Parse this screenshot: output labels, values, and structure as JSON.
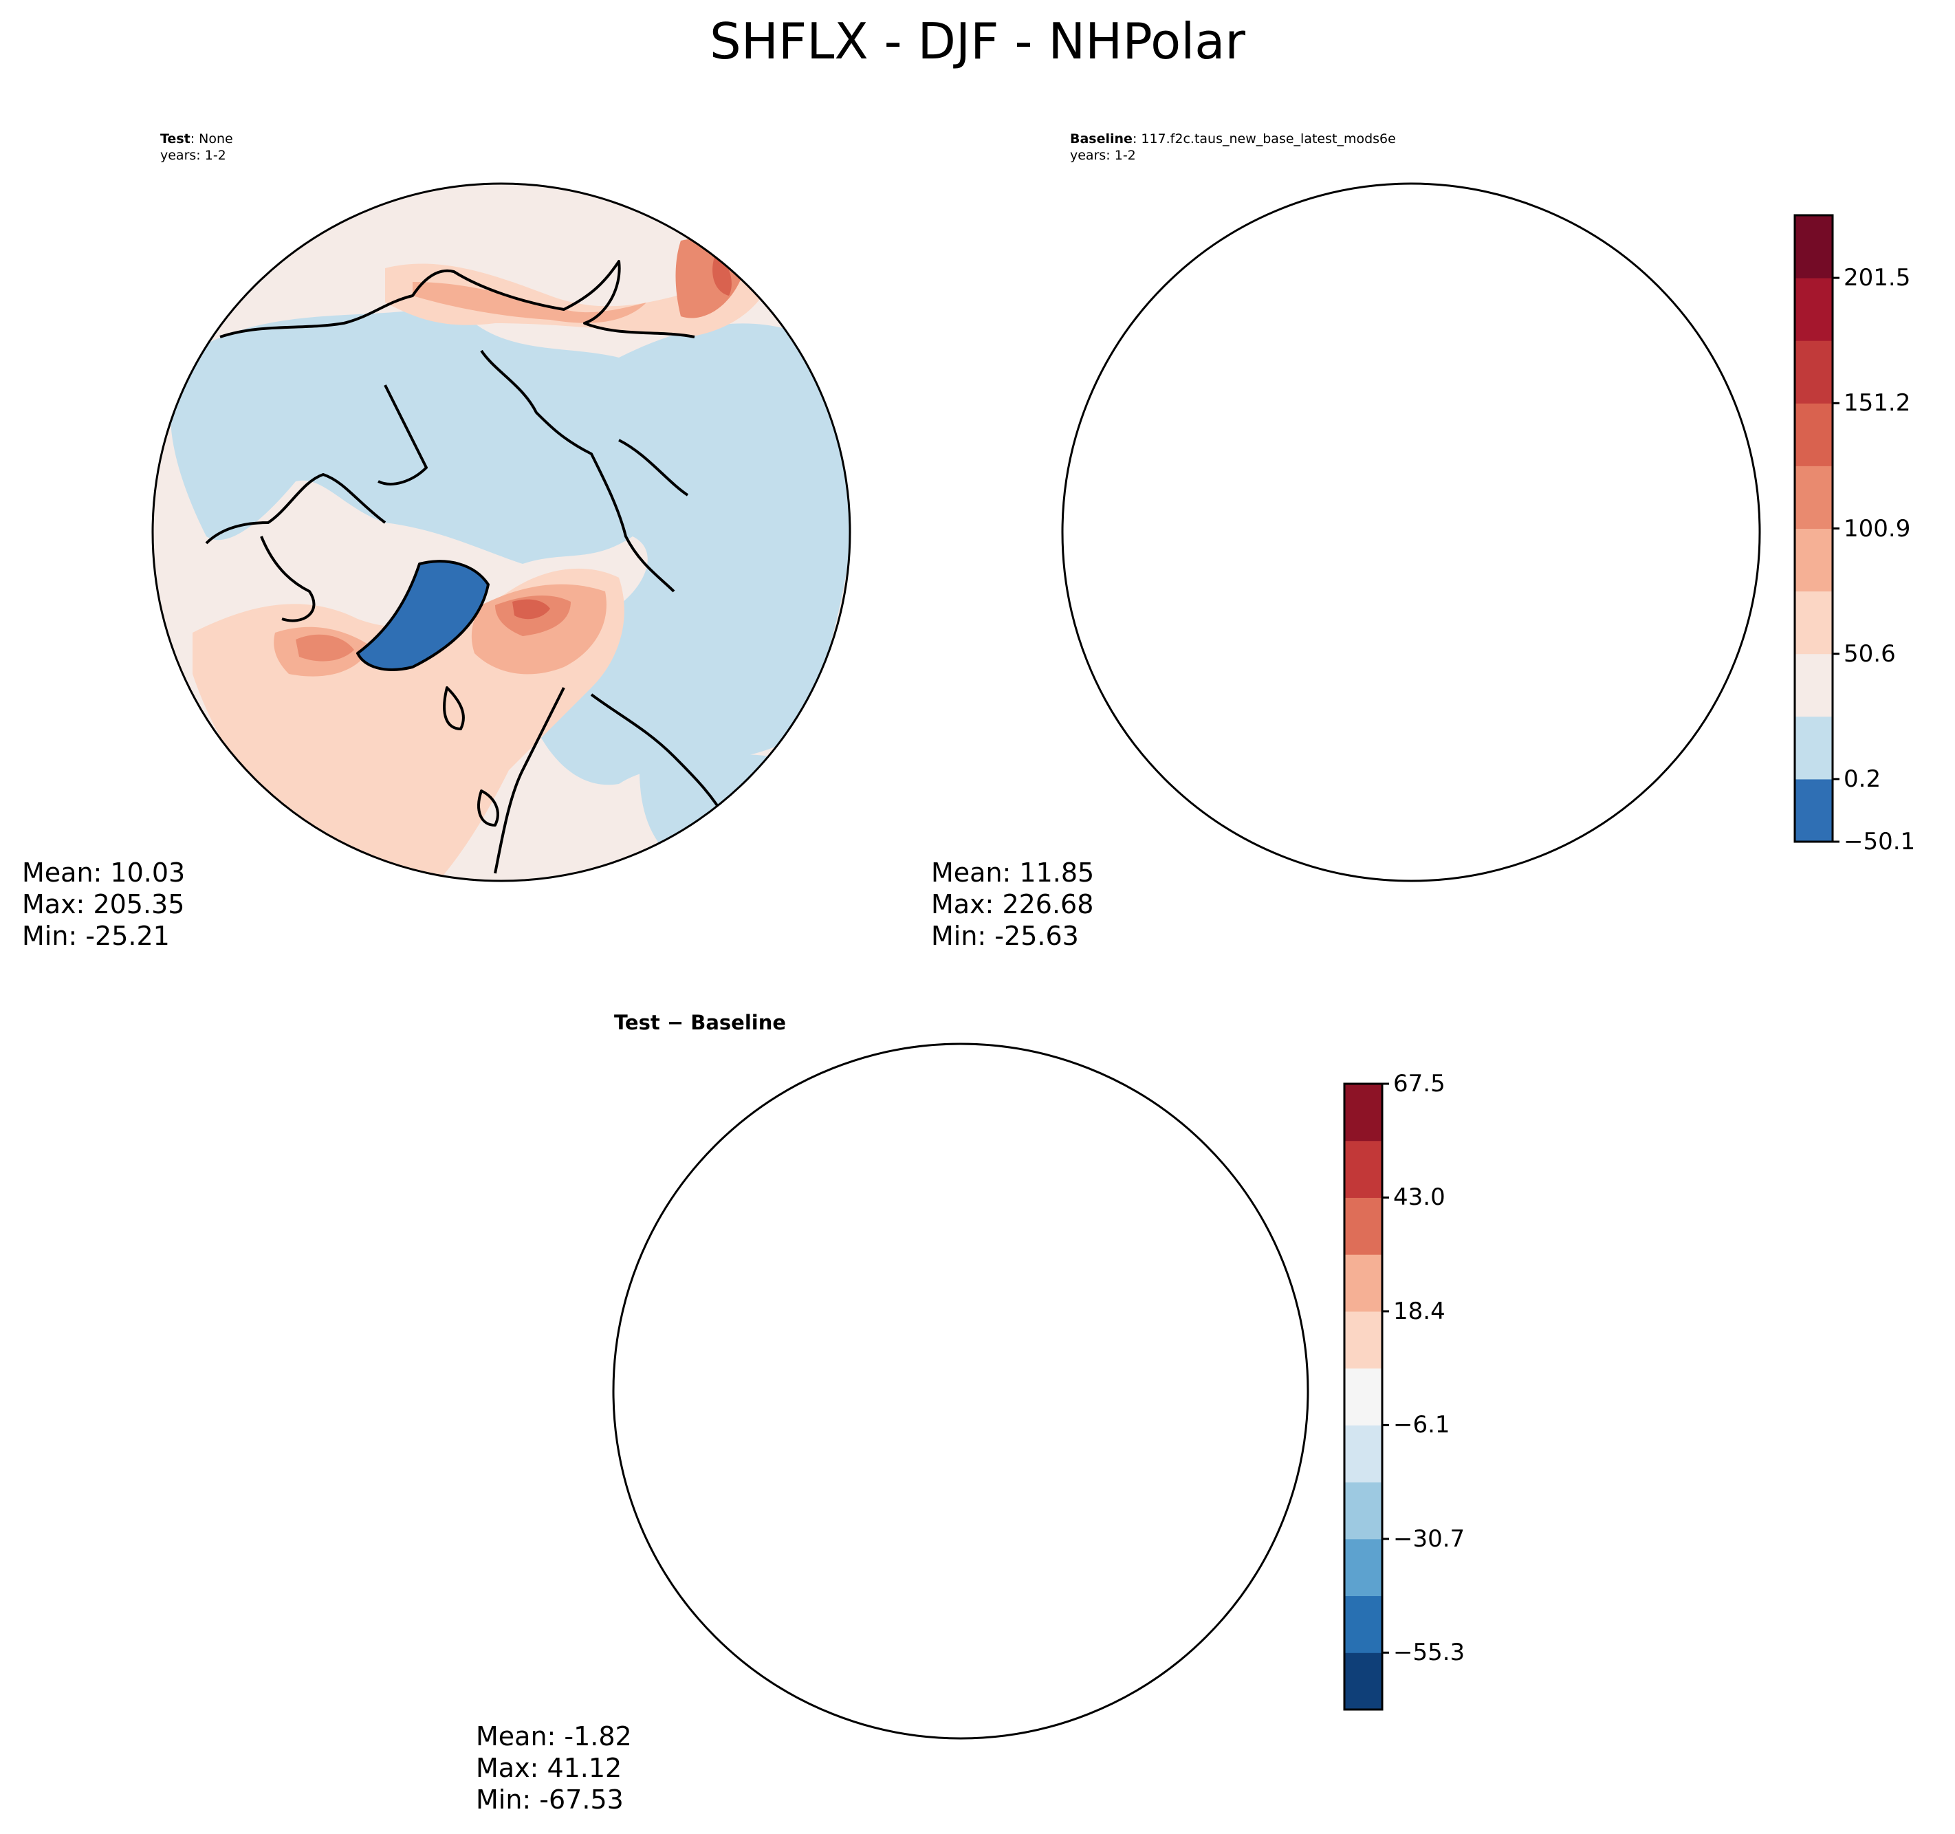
{
  "title": "SHFLX - DJF - NHPolar",
  "panels": {
    "test": {
      "label_bold": "Test",
      "label_rest": ": None",
      "years": "years: 1-2",
      "stats": {
        "mean": "Mean: 10.03",
        "max": "Max: 205.35",
        "min": "Min: -25.21"
      }
    },
    "baseline": {
      "label_bold": "Baseline",
      "label_rest": ": 117.f2c.taus_new_base_latest_mods6e",
      "years": "years: 1-2",
      "stats": {
        "mean": "Mean: 11.85",
        "max": "Max: 226.68",
        "min": "Min: -25.63"
      }
    },
    "diff": {
      "label_bold": "Test − Baseline",
      "stats": {
        "mean": "Mean: -1.82",
        "max": "Max: 41.12",
        "min": "Min: -67.53"
      }
    }
  },
  "colorbars": {
    "main": {
      "ticks": [
        "−50.1",
        "0.2",
        "50.6",
        "100.9",
        "151.2",
        "201.5"
      ],
      "colors": [
        "#2f6fb4",
        "#c3deec",
        "#f5ebe7",
        "#fbd6c4",
        "#f5b095",
        "#e98a6f",
        "#d9624f",
        "#c13a3a",
        "#a5172d",
        "#740b26"
      ]
    },
    "diff": {
      "ticks": [
        "−55.3",
        "−30.7",
        "−6.1",
        "18.4",
        "43.0",
        "67.5"
      ],
      "colors": [
        "#0f3f78",
        "#2870b2",
        "#5da2cf",
        "#9dc9e1",
        "#d3e5f1",
        "#f5f5f5",
        "#fbd6c4",
        "#f5b095",
        "#de6e58",
        "#c23838",
        "#8d1326"
      ]
    }
  },
  "map_colors": {
    "ocean_low": "#c3deec",
    "near_zero": "#f5ebe7",
    "low_pos": "#fbd6c4",
    "mid_pos": "#f5b095",
    "high_pos": "#e98a6f",
    "higher_pos": "#d9624f",
    "top_pos": "#c13a3a",
    "greenland": "#2f6fb4",
    "diff_neutral": "#f5f5f5",
    "diff_neg1": "#d3e5f1",
    "diff_neg2": "#9dc9e1",
    "diff_neg3": "#5da2cf",
    "diff_neg4": "#2870b2",
    "diff_pos1": "#fbd6c4",
    "diff_pos2": "#f5b095",
    "diff_pos3": "#de6e58"
  }
}
